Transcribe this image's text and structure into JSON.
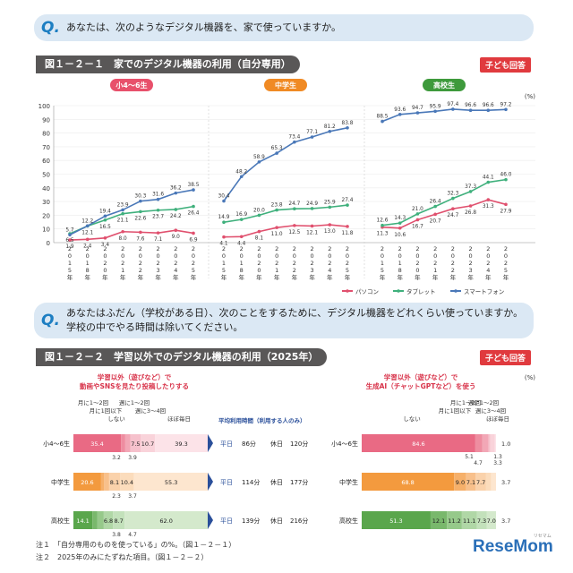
{
  "questions": [
    {
      "marker": "Q.",
      "text": "あなたは、次のようなデジタル機器を、家で使っていますか。"
    },
    {
      "marker": "Q.",
      "line1": "あなたはふだん（学校がある日）、次のことをするために、デジタル機器をどれくらい使っていますか。",
      "line2": "学校の中でやる時間は除いてください。"
    }
  ],
  "fig1": {
    "title": "図１－２－１　家でのデジタル機器の利用（自分専用）",
    "badge": "子ども回答"
  },
  "fig2": {
    "title": "図１－２－２　学習以外でのデジタル機器の利用（2025年）",
    "badge": "子ども回答"
  },
  "chart_data": [
    {
      "type": "line",
      "title": "家でのデジタル機器の利用（自分専用）",
      "ylabel": "(%)",
      "ylim": [
        0,
        100
      ],
      "yticks": [
        0,
        10,
        20,
        30,
        40,
        50,
        60,
        70,
        80,
        90,
        100
      ],
      "groups": [
        {
          "name": "小4～6生",
          "color": "#e8506b"
        },
        {
          "name": "中学生",
          "color": "#f08a24"
        },
        {
          "name": "高校生",
          "color": "#3e9a3c"
        }
      ],
      "x": [
        "2015年",
        "2018年",
        "2020年",
        "2021年",
        "2022年",
        "2023年",
        "2024年",
        "2025年"
      ],
      "x_tick_chars": [
        [
          "2",
          "0",
          "1",
          "5",
          "年"
        ],
        [
          "2",
          "0",
          "1",
          "8",
          "年"
        ],
        [
          "2",
          "0",
          "2",
          "0",
          "年"
        ],
        [
          "2",
          "0",
          "2",
          "1",
          "年"
        ],
        [
          "2",
          "0",
          "2",
          "2",
          "年"
        ],
        [
          "2",
          "0",
          "2",
          "3",
          "年"
        ],
        [
          "2",
          "0",
          "2",
          "4",
          "年"
        ],
        [
          "2",
          "0",
          "2",
          "5",
          "年"
        ]
      ],
      "series": [
        {
          "name": "パソコン",
          "color": "#e0506e",
          "values": [
            [
              1.9,
              2.4,
              3.4,
              8.0,
              7.6,
              7.1,
              9.0,
              6.9
            ],
            [
              4.1,
              4.4,
              8.1,
              11.0,
              12.5,
              12.1,
              13.0,
              11.8
            ],
            [
              11.3,
              10.6,
              16.7,
              20.7,
              24.7,
              26.8,
              31.3,
              27.9
            ]
          ],
          "labels": [
            [
              "1.9",
              "2.4",
              "3.4",
              "8.0",
              "7.6",
              "7.1",
              "9.0",
              "6.9"
            ],
            [
              "4.1",
              "4.4",
              "8.1",
              "11.0",
              "12.5",
              "12.1",
              "13.0",
              "11.8"
            ],
            [
              "11.3",
              "10.6",
              "16.7",
              "20.7",
              "24.7",
              "26.8",
              "31.3",
              "27.9"
            ]
          ]
        },
        {
          "name": "タブレット",
          "color": "#3fb07c",
          "values": [
            [
              6.5,
              12.1,
              16.5,
              21.1,
              22.6,
              23.7,
              24.2,
              26.4
            ],
            [
              14.9,
              16.9,
              20.0,
              23.8,
              24.7,
              24.9,
              25.9,
              27.4
            ],
            [
              12.6,
              14.3,
              21.0,
              26.4,
              32.3,
              37.3,
              44.1,
              46.0
            ]
          ],
          "labels": [
            [
              "6.5",
              "12.1",
              "16.5",
              "21.1",
              "22.6",
              "23.7",
              "24.2",
              "26.4"
            ],
            [
              "14.9",
              "16.9",
              "20.0",
              "23.8",
              "24.7",
              "24.9",
              "25.9",
              "27.4"
            ],
            [
              "12.6",
              "14.3",
              "21.0",
              "26.4",
              "32.3",
              "37.3",
              "44.1",
              "46.0"
            ]
          ]
        },
        {
          "name": "スマートフォン",
          "color": "#4a78b8",
          "values": [
            [
              5.7,
              12.2,
              19.4,
              23.9,
              30.3,
              31.6,
              36.2,
              38.5
            ],
            [
              30.4,
              48.2,
              58.9,
              65.3,
              73.4,
              77.1,
              81.2,
              83.8
            ],
            [
              88.5,
              93.6,
              94.7,
              95.9,
              97.4,
              96.6,
              96.6,
              97.2
            ]
          ],
          "labels": [
            [
              "5.7",
              "12.2",
              "19.4",
              "23.9",
              "30.3",
              "31.6",
              "36.2",
              "38.5"
            ],
            [
              "30.4",
              "48.2",
              "58.9",
              "65.3",
              "73.4",
              "77.1",
              "81.2",
              "83.8"
            ],
            [
              "88.5",
              "93.6",
              "94.7",
              "95.9",
              "97.4",
              "96.6",
              "96.6",
              "97.2"
            ]
          ]
        }
      ],
      "legend_position": "bottom-right"
    },
    {
      "type": "bar",
      "stacked": true,
      "title": "学習以外（遊びなど）で動画やSNSを見たり投稿したりする",
      "title_lines": [
        "学習以外（遊びなど）で",
        "動画やSNSを見たり投稿したりする"
      ],
      "categories": [
        "小4～6生",
        "中学生",
        "高校生"
      ],
      "segments": [
        "しない",
        "月に1回以下",
        "月に1～2回",
        "週に1～2回",
        "週に3～4回",
        "ほぼ毎日"
      ],
      "callouts": {
        "top": [
          "月に1～2回",
          "月に1回以下",
          "しない",
          "週に1～2回",
          "週に3～4回",
          "ほぼ毎日"
        ],
        "below": [
          [
            "3.2",
            "3.9"
          ],
          [
            "2.3",
            "3.7"
          ],
          [
            "3.8",
            "4.7"
          ]
        ]
      },
      "values": [
        [
          35.4,
          3.2,
          3.9,
          7.5,
          10.7,
          39.3
        ],
        [
          20.6,
          2.3,
          3.7,
          8.1,
          10.4,
          55.3
        ],
        [
          14.1,
          3.8,
          4.7,
          6.8,
          8.7,
          62.0
        ]
      ],
      "bar_labels": [
        [
          "35.4",
          "",
          "",
          "7.5",
          "10.7",
          "39.3"
        ],
        [
          "20.6",
          "",
          "",
          "8.1",
          "10.4",
          "55.3"
        ],
        [
          "14.1",
          "",
          "",
          "6.8",
          "8.7",
          "62.0"
        ]
      ],
      "avg_time": {
        "header": "平均利用時間（利用する人のみ）",
        "rows": [
          {
            "weekday_label": "平日",
            "weekday": "86分",
            "holiday_label": "休日",
            "holiday": "120分"
          },
          {
            "weekday_label": "平日",
            "weekday": "114分",
            "holiday_label": "休日",
            "holiday": "177分"
          },
          {
            "weekday_label": "平日",
            "weekday": "139分",
            "holiday_label": "休日",
            "holiday": "216分"
          }
        ]
      }
    },
    {
      "type": "bar",
      "stacked": true,
      "title": "学習以外（遊びなど）で生成AI（チャットGPTなど）を使う",
      "title_lines": [
        "学習以外（遊びなど）で",
        "生成AI（チャットGPTなど）を使う"
      ],
      "categories": [
        "小4～6生",
        "中学生",
        "高校生"
      ],
      "segments": [
        "しない",
        "月に1回以下",
        "月に1～2回",
        "週に1～2回",
        "週に3～4回",
        "ほぼ毎日"
      ],
      "callouts": {
        "top": [
          "月に1～2回",
          "月に1回以下",
          "週に1～2回",
          "週に3～4回",
          "しない",
          "ほぼ毎日"
        ],
        "right": [
          "1.0",
          "3.7",
          "3.7"
        ],
        "below": [
          [
            "5.1",
            "4.7",
            "1.3",
            "3.3"
          ]
        ]
      },
      "values": [
        [
          84.6,
          5.1,
          4.7,
          1.3,
          3.3,
          1.0
        ],
        [
          68.8,
          9.0,
          7.1,
          7.7,
          3.7,
          3.7
        ],
        [
          51.3,
          12.1,
          11.2,
          11.1,
          7.3,
          7.0
        ]
      ],
      "bar_labels": [
        [
          "84.6",
          "",
          "",
          "",
          "",
          ""
        ],
        [
          "68.8",
          "9.0",
          "7.1",
          "7.7",
          "",
          ""
        ],
        [
          "51.3",
          "12.1",
          "11.2",
          "11.1",
          "7.3",
          "7.0"
        ]
      ],
      "ylabel": "(%)"
    }
  ],
  "fig2_text": {
    "pct": "(%)"
  },
  "notes": [
    "注１　「自分専用のものを使っている」の%。（図１－２－１）",
    "注２　2025年のみにたずねた項目。（図１－２－２）"
  ],
  "watermark": "ReseMom",
  "watermark_sub": "リセマム",
  "colors": {
    "accent": "#1d7ec2",
    "badge": "#e03a3e",
    "elem": "#e8506b",
    "junior": "#f08a24",
    "high": "#3e9a3c"
  }
}
